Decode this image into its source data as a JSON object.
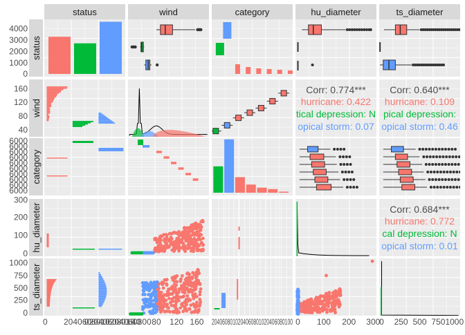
{
  "chart_data": {
    "type": "scatter-matrix",
    "title": "",
    "variables": [
      "status",
      "wind",
      "category",
      "hu_diameter",
      "ts_diameter"
    ],
    "groups": [
      {
        "name": "hurricane",
        "color": "#F8766D"
      },
      {
        "name": "tropical depression",
        "color": "#00BA38"
      },
      {
        "name": "tropical storm",
        "color": "#619CFF"
      }
    ],
    "status_counts": {
      "hurricane": 3100,
      "tropical depression": 2550,
      "tropical storm": 4350
    },
    "category_counts": {
      "cat1_bar": 4450,
      "other_bar": 2200,
      "cat1": 1300,
      "cat2": 680,
      "cat3": 420,
      "cat4": 300,
      "cat5": 90
    },
    "correlations": [
      {
        "pair": [
          "wind",
          "hu_diameter"
        ],
        "overall": "Corr: 0.774***",
        "by_group": [
          "hurricane: 0.422",
          "tical depression: N",
          "opical storm: 0.07"
        ]
      },
      {
        "pair": [
          "wind",
          "ts_diameter"
        ],
        "overall": "Corr: 0.640***",
        "by_group": [
          "hurricane: 0.109",
          "pical depression:",
          "opical storm: 0.46"
        ]
      },
      {
        "pair": [
          "hu_diameter",
          "ts_diameter"
        ],
        "overall": "Corr: 0.684***",
        "by_group": [
          "hurricane: 0.772",
          "cal depression: N",
          "opical storm: 0.01"
        ]
      }
    ],
    "axes": {
      "status_y_ticks": [
        "0",
        "1000",
        "2000",
        "3000",
        "4000"
      ],
      "wind_y_ticks": [
        "40",
        "80",
        "120",
        "160"
      ],
      "hu_y_ticks": [
        "0",
        "100",
        "200",
        "300"
      ],
      "ts_y_ticks": [
        "0",
        "250",
        "500",
        "750",
        "1000"
      ],
      "status_x_ticks_text": [
        "0",
        "2040608010",
        "02040608010",
        "0204060800"
      ],
      "wind_x_ticks": [
        "40",
        "80",
        "120",
        "160"
      ],
      "category_x_ticks_text": "2040608010204060801020406080100",
      "hu_x_ticks": [
        "0",
        "100",
        "200",
        "300"
      ],
      "ts_x_ticks": [
        "0",
        "250",
        "500",
        "750",
        "1000"
      ],
      "category_y_ticks_text": "6000"
    }
  }
}
